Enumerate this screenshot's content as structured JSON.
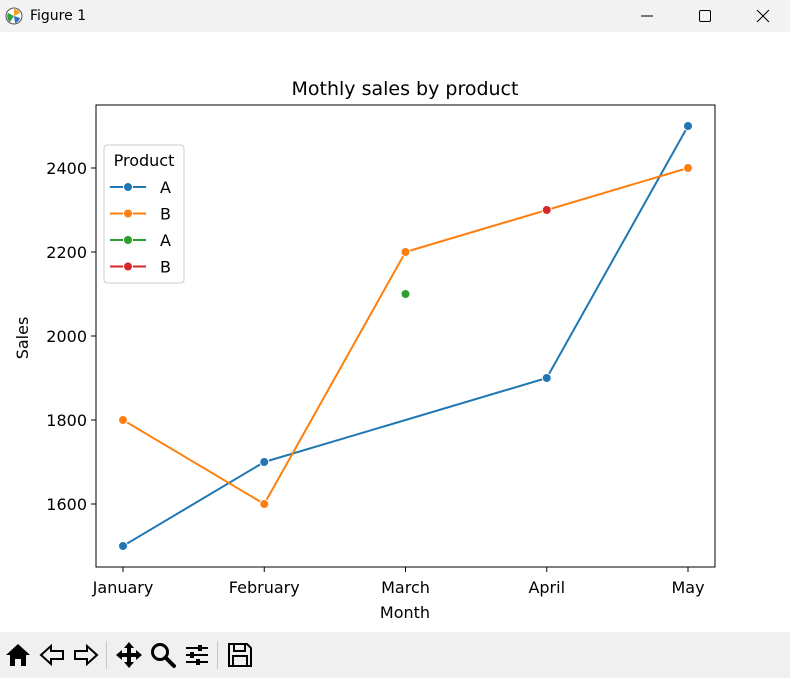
{
  "window": {
    "title": "Figure 1",
    "controls": [
      "minimize",
      "maximize",
      "close"
    ]
  },
  "toolbar": {
    "icons": [
      "home-icon",
      "back-icon",
      "forward-icon",
      "pan-icon",
      "zoom-icon",
      "configure-subplots-icon",
      "save-icon"
    ]
  },
  "chart_data": {
    "type": "line",
    "title": "Mothly sales by product",
    "xlabel": "Month",
    "ylabel": "Sales",
    "categories": [
      "January",
      "February",
      "March",
      "April",
      "May"
    ],
    "ylim": [
      1450,
      2550
    ],
    "yticks": [
      1600,
      1800,
      2000,
      2200,
      2400
    ],
    "grid": false,
    "legend": {
      "title": "Product",
      "placement": "top-left",
      "entries": [
        {
          "label": "A",
          "color": "#1f77b4"
        },
        {
          "label": "B",
          "color": "#ff7f0e"
        },
        {
          "label": "A",
          "color": "#2ca02c"
        },
        {
          "label": "B",
          "color": "#d62728"
        }
      ]
    },
    "series": [
      {
        "name": "A",
        "color": "#1f77b4",
        "line": true,
        "points": [
          [
            "January",
            1500
          ],
          [
            "February",
            1700
          ],
          [
            "April",
            1900
          ],
          [
            "May",
            2500
          ]
        ]
      },
      {
        "name": "B",
        "color": "#ff7f0e",
        "line": true,
        "points": [
          [
            "January",
            1800
          ],
          [
            "February",
            1600
          ],
          [
            "March",
            2200
          ],
          [
            "May",
            2400
          ]
        ]
      },
      {
        "name": "A",
        "color": "#2ca02c",
        "line": false,
        "points": [
          [
            "March",
            2100
          ]
        ]
      },
      {
        "name": "B",
        "color": "#d62728",
        "line": false,
        "points": [
          [
            "April",
            2300
          ]
        ]
      }
    ]
  }
}
